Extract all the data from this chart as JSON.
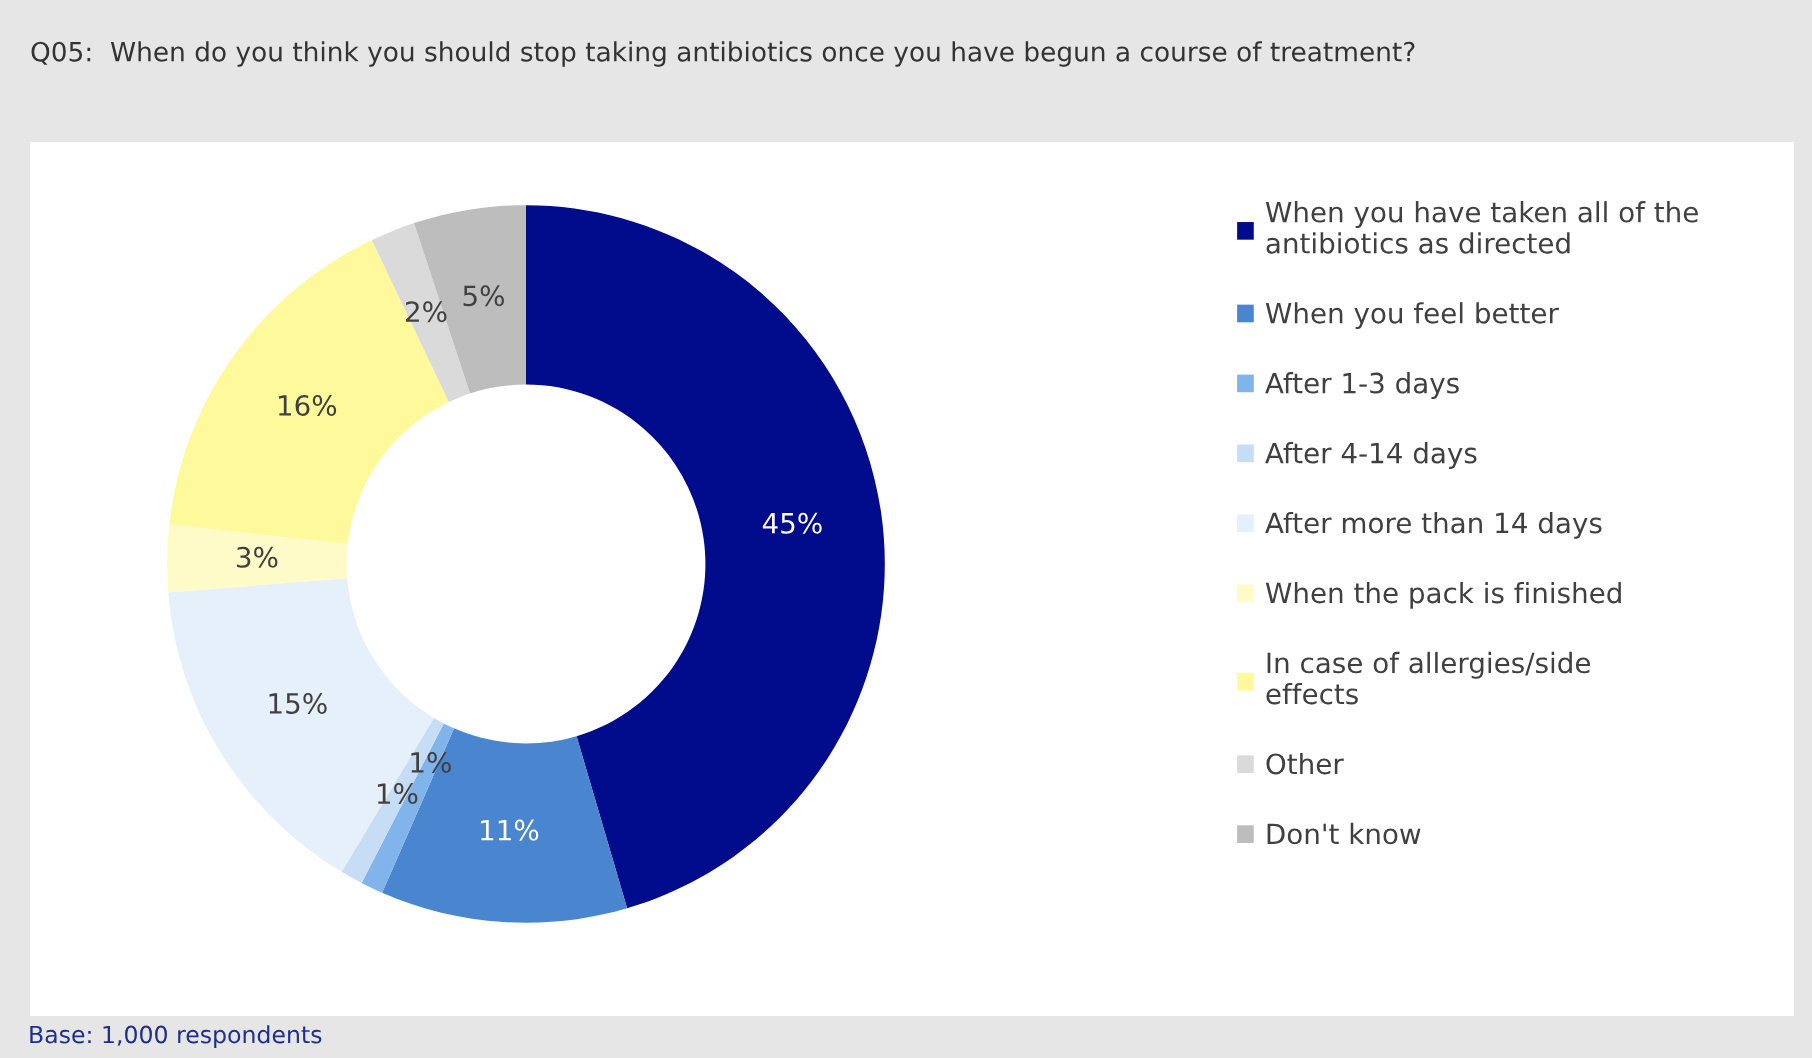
{
  "chart_data": {
    "type": "donut",
    "title": "Q05:  When do you think you should stop taking antibiotics once you have begun a course of treatment?",
    "categories": [
      "When you have taken all of the antibiotics as directed",
      "When you feel better",
      "After 1-3 days",
      "After 4-14 days",
      "After more than 14 days",
      "When the pack is finished",
      "In case of allergies/side effects",
      "Other",
      "Don't know"
    ],
    "values": [
      45,
      11,
      1,
      1,
      15,
      3,
      16,
      2,
      5
    ],
    "value_labels": [
      "45%",
      "11%",
      "1%",
      "1%",
      "15%",
      "3%",
      "16%",
      "2%",
      "5%"
    ],
    "colors": [
      "#000c8c",
      "#4a86d0",
      "#80b4ea",
      "#c7ddf5",
      "#e6f0fa",
      "#fefbc9",
      "#fefa9c",
      "#dadada",
      "#bdbdbd"
    ],
    "legend": "right",
    "annotations": [
      "Base: 1,000 respondents"
    ]
  }
}
